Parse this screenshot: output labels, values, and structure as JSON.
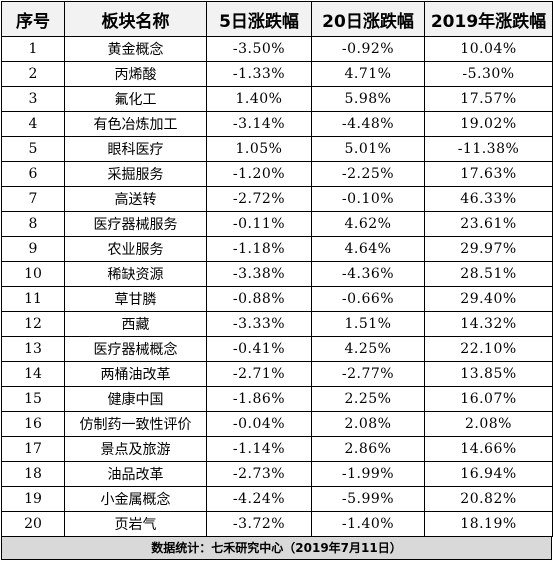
{
  "table": {
    "headers": [
      "序号",
      "板块名称",
      "5日涨跌幅",
      "20日涨跌幅",
      "2019年涨跌幅"
    ],
    "rows": [
      [
        "1",
        "黄金概念",
        "-3.50%",
        "-0.92%",
        "10.04%"
      ],
      [
        "2",
        "丙烯酸",
        "-1.33%",
        "4.71%",
        "-5.30%"
      ],
      [
        "3",
        "氟化工",
        "1.40%",
        "5.98%",
        "17.57%"
      ],
      [
        "4",
        "有色冶炼加工",
        "-3.14%",
        "-4.48%",
        "19.02%"
      ],
      [
        "5",
        "眼科医疗",
        "1.05%",
        "5.01%",
        "-11.38%"
      ],
      [
        "6",
        "采掘服务",
        "-1.20%",
        "-2.25%",
        "17.63%"
      ],
      [
        "7",
        "高送转",
        "-2.72%",
        "-0.10%",
        "46.33%"
      ],
      [
        "8",
        "医疗器械服务",
        "-0.11%",
        "4.62%",
        "23.61%"
      ],
      [
        "9",
        "农业服务",
        "-1.18%",
        "4.64%",
        "29.97%"
      ],
      [
        "10",
        "稀缺资源",
        "-3.38%",
        "-4.36%",
        "28.51%"
      ],
      [
        "11",
        "草甘膦",
        "-0.88%",
        "-0.66%",
        "29.40%"
      ],
      [
        "12",
        "西藏",
        "-3.33%",
        "1.51%",
        "14.32%"
      ],
      [
        "13",
        "医疗器械概念",
        "-0.41%",
        "4.25%",
        "22.10%"
      ],
      [
        "14",
        "两桶油改革",
        "-2.71%",
        "-2.77%",
        "13.85%"
      ],
      [
        "15",
        "健康中国",
        "-1.86%",
        "2.25%",
        "16.07%"
      ],
      [
        "16",
        "仿制药一致性评价",
        "-0.04%",
        "2.08%",
        "2.08%"
      ],
      [
        "17",
        "景点及旅游",
        "-1.14%",
        "2.86%",
        "14.66%"
      ],
      [
        "18",
        "油品改革",
        "-2.73%",
        "-1.99%",
        "16.94%"
      ],
      [
        "19",
        "小金属概念",
        "-4.24%",
        "-5.99%",
        "20.82%"
      ],
      [
        "20",
        "页岩气",
        "-3.72%",
        "-1.40%",
        "18.19%"
      ]
    ]
  },
  "footer": "数据统计：七禾研究中心（2019年7月11日）"
}
